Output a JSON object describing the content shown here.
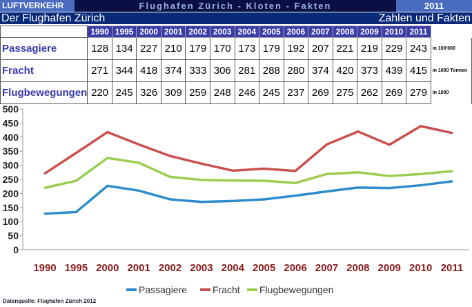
{
  "header": {
    "left": "LUFTVERKEHR",
    "center": "Flughafen Zürich - Kloten - Fakten",
    "year": "2011",
    "title": "Der Flughafen Zürich",
    "subtitle": "Zahlen und Fakten"
  },
  "footer": "Datenquelle: Flughafen Zürich  2012",
  "chart_data": {
    "type": "line",
    "categories": [
      "1990",
      "1995",
      "2000",
      "2001",
      "2002",
      "2003",
      "2004",
      "2005",
      "2006",
      "2007",
      "2008",
      "2009",
      "2010",
      "2011"
    ],
    "series": [
      {
        "name": "Passagiere",
        "unit": "in 100'000",
        "color": "#2e8ccc",
        "values": [
          128,
          134,
          227,
          210,
          179,
          170,
          173,
          179,
          192,
          207,
          221,
          219,
          229,
          243
        ]
      },
      {
        "name": "Fracht",
        "unit": "in 1000 Tonnen",
        "color": "#c8504e",
        "values": [
          271,
          344,
          418,
          374,
          333,
          306,
          281,
          288,
          280,
          374,
          420,
          373,
          439,
          415
        ]
      },
      {
        "name": "Flugbewegungen",
        "unit": "in 1000",
        "color": "#9ccc50",
        "values": [
          220,
          245,
          326,
          309,
          259,
          248,
          246,
          245,
          237,
          269,
          275,
          262,
          269,
          279
        ]
      }
    ],
    "ylim": [
      0,
      500
    ],
    "yticks": [
      "0",
      "50",
      "100",
      "150",
      "200",
      "250",
      "300",
      "350",
      "400",
      "450",
      "500"
    ],
    "grid": false,
    "legend": "bottom"
  }
}
